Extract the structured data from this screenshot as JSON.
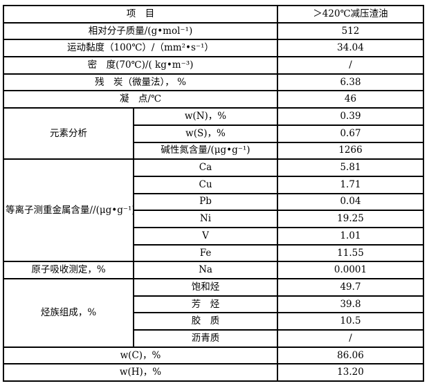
{
  "table": {
    "header": {
      "item_label": "项　目",
      "value_label": "＞420℃减压渣油"
    },
    "simple_rows": [
      {
        "label": "相对分子质量/(g•mol⁻¹)",
        "value": "512"
      },
      {
        "label": "运动黏度（100℃）/（mm²•s⁻¹）",
        "value": "34.04"
      },
      {
        "label": "密　度(70℃)/( kg•m⁻³)",
        "value": "/"
      },
      {
        "label": "残　炭（微量法）， %",
        "value": "6.38"
      },
      {
        "label": "凝　点/℃",
        "value": "46"
      }
    ],
    "groups": [
      {
        "label": "元素分析",
        "rows": [
          {
            "label": "w(N)，%",
            "value": "0.39"
          },
          {
            "label": "w(S)，%",
            "value": "0.67"
          },
          {
            "label": "碱性氮含量/(μg•g⁻¹)",
            "value": "1266"
          }
        ]
      },
      {
        "label": "等离子测重金属含量//(μg•g⁻¹)",
        "rows": [
          {
            "label": "Ca",
            "value": "5.81"
          },
          {
            "label": "Cu",
            "value": "1.71"
          },
          {
            "label": "Pb",
            "value": "0.04"
          },
          {
            "label": "Ni",
            "value": "19.25"
          },
          {
            "label": "V",
            "value": "1.01"
          },
          {
            "label": "Fe",
            "value": "11.55"
          }
        ]
      },
      {
        "label": "原子吸收测定，%",
        "rows": [
          {
            "label": "Na",
            "value": "0.0001"
          }
        ]
      },
      {
        "label": "烃族组成，%",
        "rows": [
          {
            "label": "饱和烃",
            "value": "49.7"
          },
          {
            "label": "芳　烃",
            "value": "39.8"
          },
          {
            "label": "胶　质",
            "value": "10.5"
          },
          {
            "label": "沥青质",
            "value": "/"
          }
        ]
      }
    ],
    "footer_rows": [
      {
        "label": "w(C)，%",
        "value": "86.06"
      },
      {
        "label": "w(H)，%",
        "value": "13.20"
      }
    ]
  }
}
